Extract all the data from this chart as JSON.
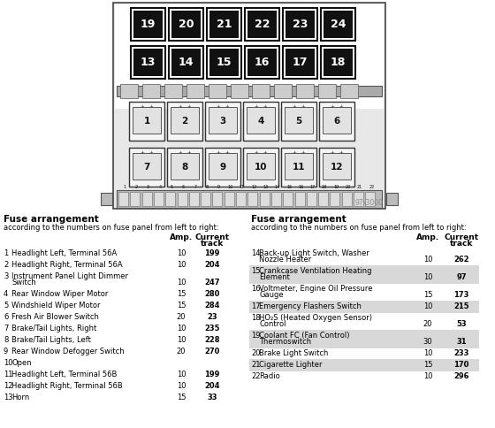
{
  "bg_color": "#ffffff",
  "large_fuses": [
    {
      "num": "19",
      "col": 0,
      "row": 0
    },
    {
      "num": "20",
      "col": 1,
      "row": 0
    },
    {
      "num": "21",
      "col": 2,
      "row": 0
    },
    {
      "num": "22",
      "col": 3,
      "row": 0
    },
    {
      "num": "23",
      "col": 4,
      "row": 0
    },
    {
      "num": "24",
      "col": 5,
      "row": 0
    },
    {
      "num": "13",
      "col": 0,
      "row": 1
    },
    {
      "num": "14",
      "col": 1,
      "row": 1
    },
    {
      "num": "15",
      "col": 2,
      "row": 1
    },
    {
      "num": "16",
      "col": 3,
      "row": 1
    },
    {
      "num": "17",
      "col": 4,
      "row": 1
    },
    {
      "num": "18",
      "col": 5,
      "row": 1
    }
  ],
  "small_fuses_row1": [
    "1",
    "2",
    "3",
    "4",
    "5",
    "6"
  ],
  "small_fuses_row2": [
    "7",
    "8",
    "9",
    "10",
    "11",
    "12"
  ],
  "left_header": "Fuse arrangement",
  "left_subheader": "according to the numbers on fuse panel from left to right:",
  "right_header": "Fuse arrangement",
  "right_subheader": "according to the numbers on fuse panel from left to right:",
  "left_entries": [
    {
      "num": 1,
      "desc": "Headlight Left, Terminal 56A",
      "desc2": "",
      "amp": "10",
      "track": "199",
      "shaded": false
    },
    {
      "num": 2,
      "desc": "Headlight Right, Terminal 56A",
      "desc2": "",
      "amp": "10",
      "track": "204",
      "shaded": false
    },
    {
      "num": 3,
      "desc": "Instrument Panel Light Dimmer",
      "desc2": "Switch",
      "amp": "10",
      "track": "247",
      "shaded": false
    },
    {
      "num": 4,
      "desc": "Rear Window Wiper Motor",
      "desc2": "",
      "amp": "15",
      "track": "280",
      "shaded": false
    },
    {
      "num": 5,
      "desc": "Windshield Wiper Motor",
      "desc2": "",
      "amp": "15",
      "track": "284",
      "shaded": false
    },
    {
      "num": 6,
      "desc": "Fresh Air Blower Switch",
      "desc2": "",
      "amp": "20",
      "track": "23",
      "shaded": false
    },
    {
      "num": 7,
      "desc": "Brake/Tail Lights, Right",
      "desc2": "",
      "amp": "10",
      "track": "235",
      "shaded": false
    },
    {
      "num": 8,
      "desc": "Brake/Tail Lights, Left",
      "desc2": "",
      "amp": "10",
      "track": "228",
      "shaded": false
    },
    {
      "num": 9,
      "desc": "Rear Window Defogger Switch",
      "desc2": "",
      "amp": "20",
      "track": "270",
      "shaded": false
    },
    {
      "num": 10,
      "desc": "Open",
      "desc2": "",
      "amp": "",
      "track": "",
      "shaded": false
    },
    {
      "num": 11,
      "desc": "Headlight Left, Terminal 56B",
      "desc2": "",
      "amp": "10",
      "track": "199",
      "shaded": false
    },
    {
      "num": 12,
      "desc": "Headlight Right, Terminal 56B",
      "desc2": "",
      "amp": "10",
      "track": "204",
      "shaded": false
    },
    {
      "num": 13,
      "desc": "Horn",
      "desc2": "",
      "amp": "15",
      "track": "33",
      "shaded": false
    }
  ],
  "right_entries": [
    {
      "num": 14,
      "desc": "Back-up Light Switch, Washer",
      "desc2": "Nozzle Heater",
      "amp": "10",
      "track": "262",
      "shaded": false
    },
    {
      "num": 15,
      "desc": "Crankcase Ventilation Heating",
      "desc2": "Element",
      "amp": "10",
      "track": "97",
      "shaded": true
    },
    {
      "num": 16,
      "desc": "Voltmeter, Engine Oil Pressure",
      "desc2": "Gauge",
      "amp": "15",
      "track": "173",
      "shaded": false
    },
    {
      "num": 17,
      "desc": "Emergency Flashers Switch",
      "desc2": "",
      "amp": "10",
      "track": "215",
      "shaded": true
    },
    {
      "num": 18,
      "desc": "HO₂S (Heated Oxygen Sensor)",
      "desc2": "Control",
      "amp": "20",
      "track": "53",
      "shaded": false
    },
    {
      "num": 19,
      "desc": "Coolant FC (Fan Control)",
      "desc2": "Thermoswitch",
      "amp": "30",
      "track": "31",
      "shaded": true
    },
    {
      "num": 20,
      "desc": "Brake Light Switch",
      "desc2": "",
      "amp": "10",
      "track": "233",
      "shaded": false
    },
    {
      "num": 21,
      "desc": "Cigarette Lighter",
      "desc2": "",
      "amp": "15",
      "track": "170",
      "shaded": true
    },
    {
      "num": 22,
      "desc": "Radio",
      "desc2": "",
      "amp": "10",
      "track": "296",
      "shaded": false
    }
  ],
  "watermark": "97-3000",
  "shade_color": "#d8d8d8"
}
